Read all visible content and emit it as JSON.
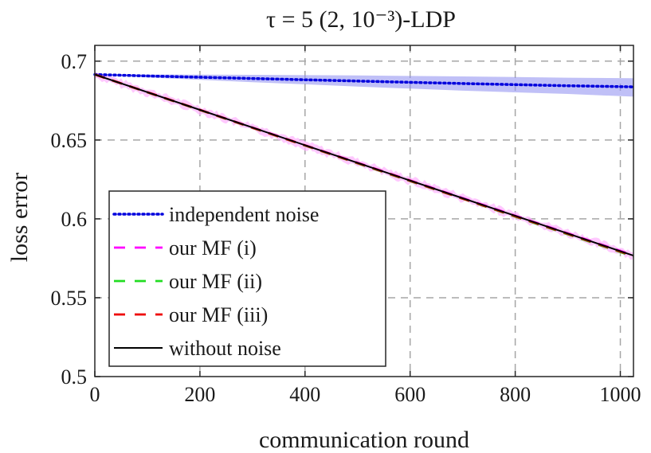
{
  "chart_data": {
    "type": "line",
    "title": "τ = 5  (2, 10⁻³)-LDP",
    "xlabel": "communication round",
    "ylabel": "loss error",
    "xlim": [
      0,
      1025
    ],
    "ylim": [
      0.5,
      0.71
    ],
    "xticks": [
      0,
      200,
      400,
      600,
      800,
      1000
    ],
    "yticks": [
      0.5,
      0.55,
      0.6,
      0.65,
      0.7
    ],
    "xtick_labels": [
      "0",
      "200",
      "400",
      "600",
      "800",
      "1000"
    ],
    "ytick_labels": [
      "0.5",
      "0.55",
      "0.6",
      "0.65",
      "0.7"
    ],
    "grid": true,
    "legend_position": "bottom-left",
    "series": [
      {
        "name": "independent noise",
        "color": "#0000dd",
        "style": "dotted",
        "x": [
          0,
          100,
          200,
          300,
          400,
          500,
          600,
          700,
          800,
          900,
          1025
        ],
        "y": [
          0.6915,
          0.6906,
          0.6898,
          0.689,
          0.6882,
          0.6874,
          0.6866,
          0.6858,
          0.6851,
          0.6844,
          0.6837
        ],
        "band_upper": [
          0.6915,
          0.6915,
          0.6914,
          0.6913,
          0.6911,
          0.6909,
          0.6906,
          0.6903,
          0.6899,
          0.6895,
          0.6892
        ],
        "band_lower": [
          0.6915,
          0.6897,
          0.6882,
          0.6867,
          0.6853,
          0.6839,
          0.6826,
          0.6813,
          0.6802,
          0.6792,
          0.6775
        ],
        "band_color": "#8c8cf0"
      },
      {
        "name": "our MF (i)",
        "color": "#ff00ff",
        "style": "dashed",
        "x": [
          0,
          100,
          200,
          300,
          400,
          500,
          600,
          700,
          800,
          900,
          1025
        ],
        "y": [
          0.6915,
          0.6803,
          0.6691,
          0.6579,
          0.6467,
          0.6356,
          0.6244,
          0.6132,
          0.602,
          0.5908,
          0.5769
        ],
        "band_color": "#ffb0ff"
      },
      {
        "name": "our MF (ii)",
        "color": "#22dd22",
        "style": "dashed",
        "x": [
          0,
          100,
          200,
          300,
          400,
          500,
          600,
          700,
          800,
          900,
          1025
        ],
        "y": [
          0.6915,
          0.6802,
          0.669,
          0.6577,
          0.6465,
          0.6352,
          0.624,
          0.6127,
          0.6014,
          0.5902,
          0.5761
        ]
      },
      {
        "name": "our MF (iii)",
        "color": "#ee0000",
        "style": "dashed",
        "x": [
          0,
          100,
          200,
          300,
          400,
          500,
          600,
          700,
          800,
          900,
          1025
        ],
        "y": [
          0.6915,
          0.6803,
          0.6691,
          0.6578,
          0.6466,
          0.6354,
          0.6242,
          0.6129,
          0.6017,
          0.5905,
          0.5765
        ]
      },
      {
        "name": "without noise",
        "color": "#000000",
        "style": "solid",
        "x": [
          0,
          100,
          200,
          300,
          400,
          500,
          600,
          700,
          800,
          900,
          1025
        ],
        "y": [
          0.6915,
          0.6803,
          0.6691,
          0.6579,
          0.6467,
          0.6355,
          0.6243,
          0.6131,
          0.6019,
          0.5907,
          0.5767
        ]
      }
    ]
  }
}
